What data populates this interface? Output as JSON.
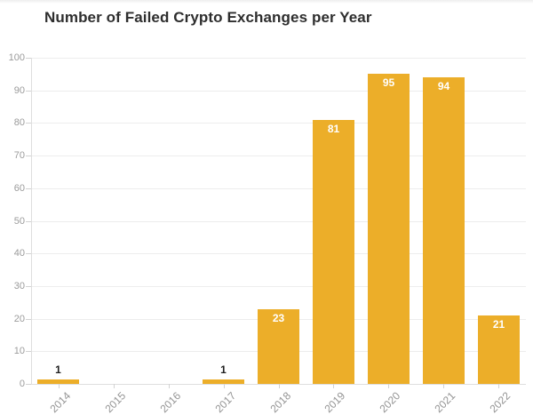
{
  "chart_data": {
    "type": "bar",
    "title": "Number of Failed Crypto Exchanges per Year",
    "categories": [
      "2014",
      "2015",
      "2016",
      "2017",
      "2018",
      "2019",
      "2020",
      "2021",
      "2022"
    ],
    "values": [
      1,
      0,
      0,
      1,
      23,
      81,
      95,
      94,
      21
    ],
    "bar_value_labels": [
      "1",
      "",
      "",
      "1",
      "23",
      "81",
      "95",
      "94",
      "21"
    ],
    "xlabel": "",
    "ylabel": "",
    "ylim": [
      0,
      100
    ],
    "yticks": [
      0,
      10,
      20,
      30,
      40,
      50,
      60,
      70,
      80,
      90,
      100
    ],
    "grid": "horizontal",
    "legend": "none",
    "colors": {
      "bar": "#ecae29",
      "gridline": "#ededed",
      "axis_line": "#dedede",
      "tick": "#d2d2d2",
      "y_tick_label": "#9b9b9b",
      "x_axis_label": "#949494",
      "title": "#2e2e2e",
      "value_label_inside": "#ffffff",
      "value_label_above": "#1f1f1f",
      "background": "#ffffff"
    }
  }
}
